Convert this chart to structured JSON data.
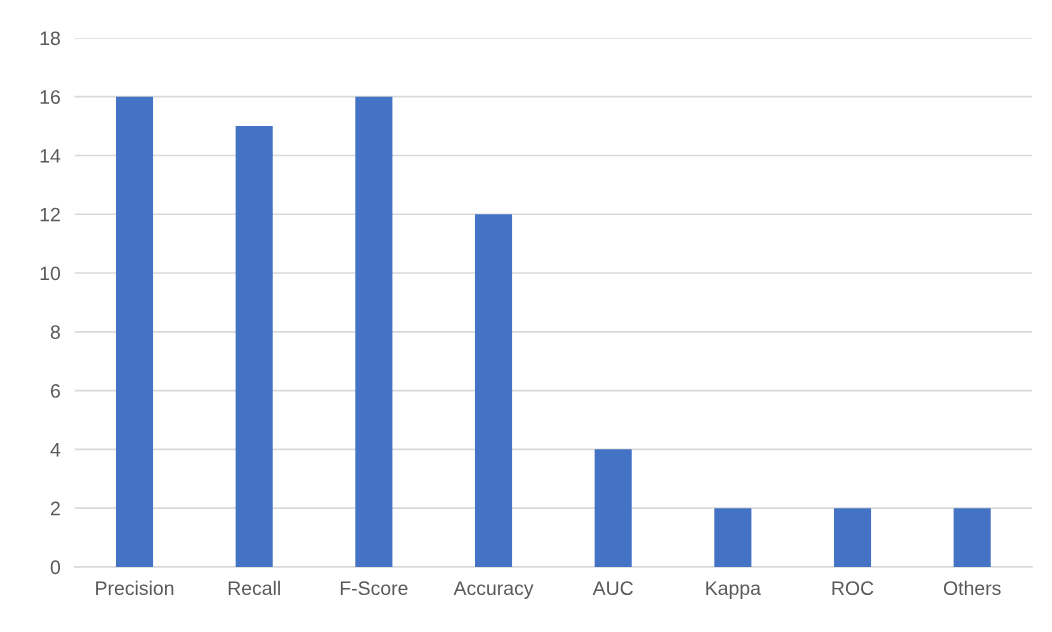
{
  "chart_data": {
    "type": "bar",
    "categories": [
      "Precision",
      "Recall",
      "F-Score",
      "Accuracy",
      "AUC",
      "Kappa",
      "ROC",
      "Others"
    ],
    "values": [
      16,
      15,
      16,
      12,
      4,
      2,
      2,
      2
    ],
    "color": "#4472c4",
    "ylim": [
      0,
      18
    ],
    "yticks": [
      0,
      2,
      4,
      6,
      8,
      10,
      12,
      14,
      16,
      18
    ],
    "grid": "y"
  }
}
